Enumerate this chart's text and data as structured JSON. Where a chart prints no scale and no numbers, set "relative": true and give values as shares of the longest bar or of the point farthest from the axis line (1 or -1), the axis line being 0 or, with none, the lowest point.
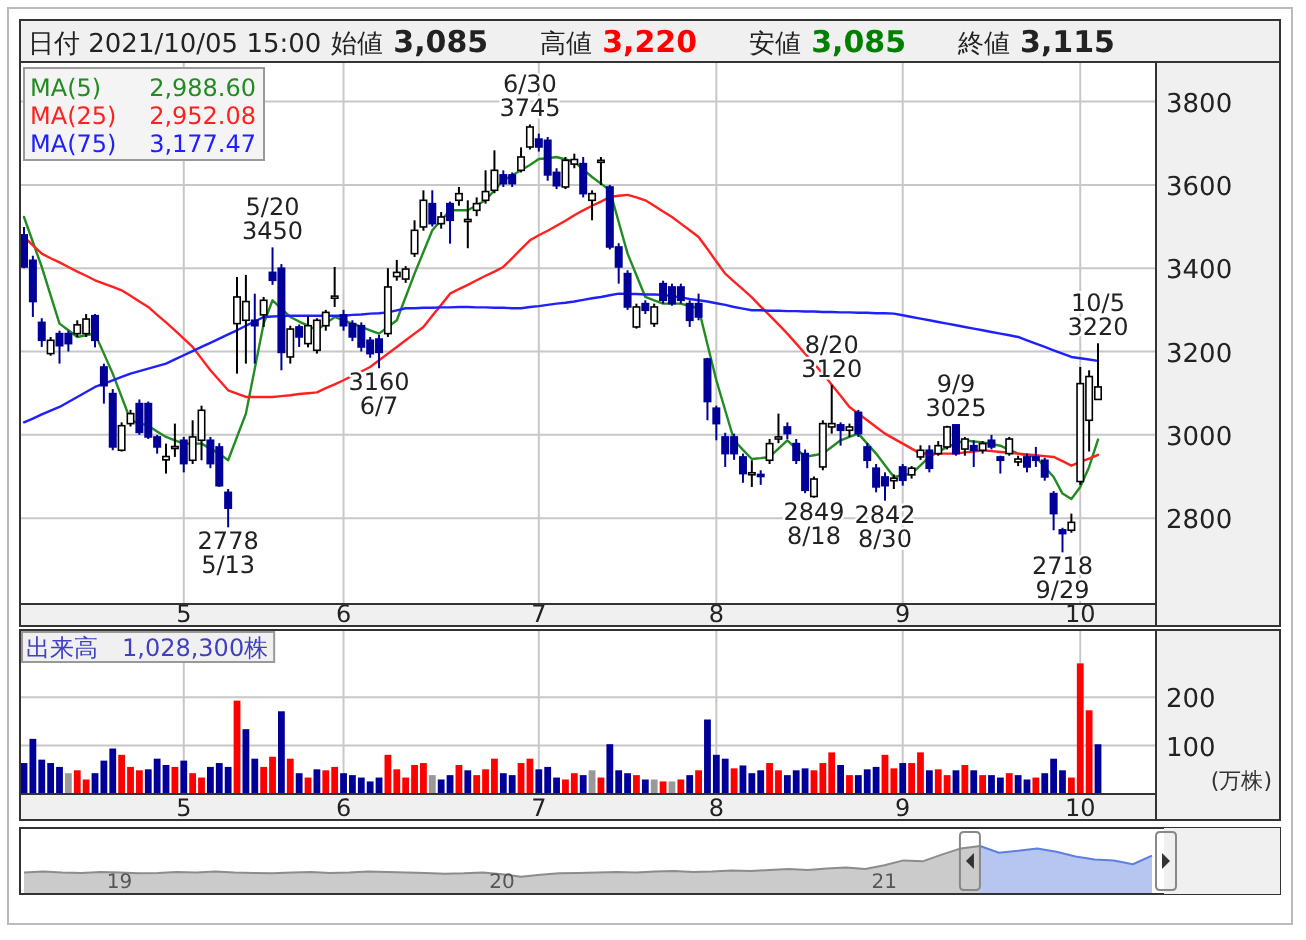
{
  "chart_data": [
    {
      "type": "candlestick",
      "categories": [
        null,
        null,
        null,
        null,
        null,
        null,
        null,
        null,
        null,
        null,
        null,
        null,
        null,
        null,
        null,
        null,
        null,
        null,
        "5",
        null,
        null,
        null,
        null,
        null,
        null,
        null,
        null,
        null,
        null,
        null,
        null,
        null,
        null,
        null,
        null,
        null,
        "6",
        null,
        null,
        null,
        null,
        null,
        null,
        null,
        null,
        null,
        null,
        null,
        null,
        null,
        null,
        null,
        null,
        null,
        null,
        null,
        null,
        null,
        "7",
        null,
        null,
        null,
        null,
        null,
        null,
        null,
        null,
        null,
        null,
        null,
        null,
        null,
        null,
        null,
        null,
        null,
        null,
        null,
        "8",
        null,
        null,
        null,
        null,
        null,
        null,
        null,
        null,
        null,
        null,
        null,
        null,
        null,
        null,
        null,
        null,
        null,
        null,
        null,
        null,
        "9",
        null,
        null,
        null,
        null,
        null,
        null,
        null,
        null,
        null,
        null,
        null,
        null,
        null,
        null,
        null,
        null,
        null,
        null,
        null,
        "10",
        null,
        null
      ],
      "ohlc": [
        [
          3480,
          3499,
          3400,
          3403
        ],
        [
          3419,
          3430,
          3283,
          3320
        ],
        [
          3270,
          3280,
          3211,
          3227
        ],
        [
          3195,
          3235,
          3190,
          3227
        ],
        [
          3243,
          3250,
          3171,
          3214
        ],
        [
          3243,
          3250,
          3200,
          3219
        ],
        [
          3243,
          3275,
          3235,
          3264
        ],
        [
          3243,
          3290,
          3235,
          3278
        ],
        [
          3286,
          3290,
          3210,
          3227
        ],
        [
          3163,
          3171,
          3075,
          3118
        ],
        [
          3099,
          3110,
          2963,
          2971
        ],
        [
          2963,
          3030,
          2960,
          3022
        ],
        [
          3027,
          3060,
          3020,
          3051
        ],
        [
          3075,
          3085,
          3000,
          3006
        ],
        [
          3075,
          3080,
          2990,
          2995
        ],
        [
          2995,
          3000,
          2955,
          2971
        ],
        [
          2940,
          2979,
          2907,
          2948
        ],
        [
          2968,
          3027,
          2947,
          2972
        ],
        [
          2987,
          2995,
          2910,
          2931
        ],
        [
          2939,
          3035,
          2930,
          2995
        ],
        [
          2987,
          3070,
          2939,
          3059
        ],
        [
          2987,
          2995,
          2920,
          2931
        ],
        [
          2971,
          2980,
          2875,
          2878
        ],
        [
          2862,
          2870,
          2778,
          2824
        ],
        [
          3267,
          3379,
          3147,
          3331
        ],
        [
          3275,
          3384,
          3171,
          3320
        ],
        [
          3275,
          3339,
          3171,
          3262
        ],
        [
          3288,
          3331,
          3259,
          3323
        ],
        [
          3390,
          3450,
          3360,
          3371
        ],
        [
          3400,
          3410,
          3155,
          3198
        ],
        [
          3187,
          3262,
          3171,
          3254
        ],
        [
          3259,
          3265,
          3211,
          3235
        ],
        [
          3219,
          3285,
          3210,
          3262
        ],
        [
          3203,
          3280,
          3195,
          3275
        ],
        [
          3262,
          3300,
          3250,
          3294
        ],
        [
          3328,
          3403,
          3307,
          3333
        ],
        [
          3288,
          3300,
          3250,
          3262
        ],
        [
          3267,
          3275,
          3225,
          3235
        ],
        [
          3262,
          3270,
          3200,
          3211
        ],
        [
          3227,
          3235,
          3185,
          3195
        ],
        [
          3230,
          3240,
          3160,
          3198
        ],
        [
          3243,
          3400,
          3235,
          3355
        ],
        [
          3380,
          3420,
          3370,
          3390
        ],
        [
          3374,
          3405,
          3365,
          3398
        ],
        [
          3435,
          3515,
          3427,
          3491
        ],
        [
          3499,
          3587,
          3490,
          3563
        ],
        [
          3555,
          3587,
          3500,
          3507
        ],
        [
          3507,
          3535,
          3495,
          3523
        ],
        [
          3555,
          3560,
          3459,
          3515
        ],
        [
          3563,
          3595,
          3550,
          3579
        ],
        [
          3512,
          3563,
          3448,
          3517
        ],
        [
          3539,
          3570,
          3525,
          3555
        ],
        [
          3563,
          3635,
          3555,
          3584
        ],
        [
          3587,
          3683,
          3580,
          3635
        ],
        [
          3624,
          3635,
          3595,
          3603
        ],
        [
          3624,
          3630,
          3595,
          3603
        ],
        [
          3635,
          3690,
          3630,
          3667
        ],
        [
          3691,
          3745,
          3685,
          3739
        ],
        [
          3710,
          3723,
          3680,
          3691
        ],
        [
          3707,
          3715,
          3610,
          3624
        ],
        [
          3630,
          3640,
          3590,
          3598
        ],
        [
          3595,
          3667,
          3590,
          3659
        ],
        [
          3650,
          3675,
          3640,
          3661
        ],
        [
          3651,
          3667,
          3570,
          3579
        ],
        [
          3563,
          3587,
          3515,
          3579
        ],
        [
          3655,
          3667,
          3600,
          3659
        ],
        [
          3595,
          3600,
          3445,
          3451
        ],
        [
          3451,
          3460,
          3363,
          3403
        ],
        [
          3387,
          3395,
          3300,
          3307
        ],
        [
          3259,
          3315,
          3255,
          3307
        ],
        [
          3315,
          3323,
          3290,
          3299
        ],
        [
          3267,
          3315,
          3259,
          3307
        ],
        [
          3363,
          3370,
          3315,
          3323
        ],
        [
          3355,
          3363,
          3310,
          3315
        ],
        [
          3355,
          3363,
          3315,
          3323
        ],
        [
          3315,
          3323,
          3259,
          3275
        ],
        [
          3315,
          3339,
          3275,
          3283
        ],
        [
          3182,
          3185,
          3035,
          3080
        ],
        [
          3064,
          3070,
          2987,
          3027
        ],
        [
          2995,
          3005,
          2923,
          2955
        ],
        [
          2995,
          3003,
          2940,
          2955
        ],
        [
          2947,
          2955,
          2885,
          2907
        ],
        [
          2905,
          2939,
          2875,
          2909
        ],
        [
          2905,
          2915,
          2880,
          2900
        ],
        [
          2939,
          2990,
          2930,
          2979
        ],
        [
          2990,
          3051,
          2980,
          2995
        ],
        [
          3019,
          3030,
          2990,
          3003
        ],
        [
          2979,
          2990,
          2930,
          2939
        ],
        [
          2955,
          2965,
          2860,
          2867
        ],
        [
          2852,
          2900,
          2849,
          2894
        ],
        [
          2923,
          3035,
          2915,
          3027
        ],
        [
          3019,
          3120,
          3003,
          3027
        ],
        [
          3024,
          3030,
          2974,
          3011
        ],
        [
          3011,
          3027,
          2995,
          3019
        ],
        [
          3054,
          3060,
          2995,
          3003
        ],
        [
          2971,
          2980,
          2920,
          2939
        ],
        [
          2920,
          2930,
          2862,
          2875
        ],
        [
          2899,
          2910,
          2842,
          2878
        ],
        [
          2890,
          2905,
          2870,
          2896
        ],
        [
          2923,
          2930,
          2878,
          2891
        ],
        [
          2904,
          2925,
          2895,
          2920
        ],
        [
          2947,
          2975,
          2940,
          2963
        ],
        [
          2963,
          2975,
          2910,
          2920
        ],
        [
          2955,
          2985,
          2950,
          2974
        ],
        [
          2971,
          3022,
          2965,
          3019
        ],
        [
          3024,
          3025,
          2950,
          2955
        ],
        [
          2966,
          2995,
          2950,
          2990
        ],
        [
          2974,
          2987,
          2923,
          2963
        ],
        [
          2963,
          2985,
          2955,
          2979
        ],
        [
          2987,
          3000,
          2965,
          2971
        ],
        [
          2947,
          2950,
          2907,
          2939
        ],
        [
          2955,
          2995,
          2950,
          2990
        ],
        [
          2935,
          2950,
          2925,
          2942
        ],
        [
          2947,
          2955,
          2910,
          2923
        ],
        [
          2947,
          2971,
          2923,
          2939
        ],
        [
          2939,
          2945,
          2890,
          2899
        ],
        [
          2859,
          2865,
          2771,
          2811
        ],
        [
          2772,
          2777,
          2718,
          2763
        ],
        [
          2771,
          2811,
          2765,
          2790
        ],
        [
          2888,
          3163,
          2880,
          3123
        ],
        [
          3035,
          3155,
          2960,
          3140
        ],
        [
          3085,
          3220,
          3085,
          3115
        ]
      ],
      "colors": [
        "#000099",
        "#000099",
        "#000099",
        "#ffffff",
        "#000099",
        "#000099",
        "#ffffff",
        "#ffffff",
        "#000099",
        "#000099",
        "#000099",
        "#ffffff",
        "#ffffff",
        "#000099",
        "#000099",
        "#000099",
        "#ffffff",
        "#ffffff",
        "#000099",
        "#ffffff",
        "#ffffff",
        "#000099",
        "#000099",
        "#000099",
        "#ffffff",
        "#ffffff",
        "#000099",
        "#ffffff",
        "#000099",
        "#000099",
        "#ffffff",
        "#000099",
        "#ffffff",
        "#ffffff",
        "#ffffff",
        "#ffffff",
        "#000099",
        "#000099",
        "#000099",
        "#000099",
        "#000099",
        "#ffffff",
        "#ffffff",
        "#ffffff",
        "#ffffff",
        "#ffffff",
        "#000099",
        "#ffffff",
        "#000099",
        "#ffffff",
        "#ffffff",
        "#ffffff",
        "#ffffff",
        "#ffffff",
        "#000099",
        "#000099",
        "#ffffff",
        "#ffffff",
        "#000099",
        "#000099",
        "#000099",
        "#ffffff",
        "#ffffff",
        "#000099",
        "#ffffff",
        "#ffffff",
        "#000099",
        "#000099",
        "#000099",
        "#ffffff",
        "#000099",
        "#ffffff",
        "#000099",
        "#000099",
        "#000099",
        "#000099",
        "#000099",
        "#000099",
        "#000099",
        "#000099",
        "#000099",
        "#000099",
        "#ffffff",
        "#000099",
        "#ffffff",
        "#ffffff",
        "#000099",
        "#000099",
        "#000099",
        "#ffffff",
        "#ffffff",
        "#ffffff",
        "#000099",
        "#ffffff",
        "#000099",
        "#000099",
        "#000099",
        "#000099",
        "#ffffff",
        "#000099",
        "#ffffff",
        "#ffffff",
        "#000099",
        "#ffffff",
        "#ffffff",
        "#000099",
        "#ffffff",
        "#000099",
        "#ffffff",
        "#000099",
        "#000099",
        "#ffffff",
        "#ffffff",
        "#000099",
        "#000099",
        "#000099",
        "#000099",
        "#000099",
        "#ffffff",
        "#ffffff",
        "#ffffff",
        "#ffffff"
      ],
      "series": [
        {
          "name": "MA(5)",
          "type": "line",
          "color": "#228b22",
          "values": [
            3523,
            3463,
            3403,
            3335,
            3267,
            3251,
            3235,
            3239,
            3243,
            3195,
            3147,
            3091,
            3035,
            3028,
            3022,
            3008,
            2995,
            2987,
            2979,
            2979,
            2979,
            2967,
            2955,
            2939,
            2995,
            3051,
            3159,
            3267,
            3323,
            3303,
            3283,
            3272,
            3262,
            3251,
            3267,
            3283,
            3275,
            3267,
            3259,
            3251,
            3243,
            3259,
            3275,
            3331,
            3387,
            3439,
            3491,
            3515,
            3539,
            3539,
            3539,
            3551,
            3563,
            3587,
            3611,
            3623,
            3635,
            3648,
            3662,
            3664,
            3667,
            3661,
            3656,
            3637,
            3619,
            3603,
            3587,
            3511,
            3435,
            3383,
            3331,
            3323,
            3315,
            3315,
            3315,
            3309,
            3304,
            3217,
            3131,
            3059,
            2987,
            2964,
            2942,
            2944,
            2947,
            2967,
            2987,
            2967,
            2947,
            2951,
            2955,
            2971,
            2987,
            2995,
            3003,
            2979,
            2955,
            2927,
            2899,
            2903,
            2907,
            2927,
            2947,
            2959,
            2971,
            2979,
            2987,
            2984,
            2982,
            2978,
            2974,
            2964,
            2955,
            2951,
            2947,
            2923,
            2899,
            2859,
            2846,
            2875,
            2923,
            2988.6
          ]
        },
        {
          "name": "MA(25)",
          "type": "line",
          "color": "#ff2020",
          "values": [
            3475,
            3455,
            3435,
            3424,
            3414,
            3403,
            3392,
            3382,
            3371,
            3363,
            3355,
            3347,
            3334,
            3320,
            3307,
            3288,
            3270,
            3251,
            3231,
            3211,
            3183,
            3155,
            3131,
            3107,
            3099,
            3091,
            3091,
            3091,
            3091,
            3093,
            3095,
            3098,
            3100,
            3102,
            3112,
            3121,
            3131,
            3142,
            3152,
            3163,
            3179,
            3195,
            3211,
            3227,
            3243,
            3259,
            3286,
            3312,
            3339,
            3350,
            3360,
            3371,
            3382,
            3392,
            3403,
            3424,
            3446,
            3467,
            3479,
            3490,
            3502,
            3514,
            3527,
            3539,
            3550,
            3560,
            3571,
            3574,
            3576,
            3570,
            3563,
            3550,
            3536,
            3523,
            3507,
            3491,
            3475,
            3446,
            3416,
            3387,
            3368,
            3349,
            3330,
            3308,
            3287,
            3265,
            3243,
            3219,
            3195,
            3171,
            3147,
            3120,
            3094,
            3067,
            3051,
            3035,
            3019,
            3003,
            2991,
            2979,
            2967,
            2955,
            2955,
            2955,
            2955,
            2955,
            2958,
            2960,
            2963,
            2961,
            2959,
            2957,
            2955,
            2953,
            2951,
            2949,
            2947,
            2937,
            2926,
            2935,
            2943,
            2952.08
          ]
        },
        {
          "name": "MA(75)",
          "type": "line",
          "color": "#2020ff",
          "values": [
            3030,
            3039,
            3049,
            3058,
            3067,
            3079,
            3091,
            3103,
            3115,
            3123,
            3131,
            3139,
            3147,
            3153,
            3159,
            3165,
            3171,
            3181,
            3191,
            3201,
            3211,
            3221,
            3231,
            3241,
            3251,
            3262,
            3272,
            3283,
            3284,
            3285,
            3286,
            3286,
            3286,
            3286,
            3286,
            3286,
            3286,
            3288,
            3289,
            3291,
            3292,
            3294,
            3299,
            3304,
            3304,
            3305,
            3305,
            3306,
            3306,
            3307,
            3307,
            3306,
            3306,
            3305,
            3305,
            3304,
            3304,
            3307,
            3309,
            3312,
            3315,
            3317,
            3320,
            3324,
            3328,
            3331,
            3335,
            3339,
            3338,
            3338,
            3337,
            3337,
            3336,
            3333,
            3330,
            3326,
            3323,
            3320,
            3316,
            3312,
            3307,
            3303,
            3299,
            3299,
            3298,
            3298,
            3297,
            3297,
            3296,
            3296,
            3295,
            3295,
            3294,
            3294,
            3293,
            3293,
            3292,
            3292,
            3291,
            3287,
            3283,
            3279,
            3275,
            3271,
            3267,
            3263,
            3259,
            3255,
            3251,
            3247,
            3243,
            3239,
            3235,
            3227,
            3219,
            3211,
            3203,
            3195,
            3187,
            3184,
            3181,
            3177.47
          ]
        }
      ],
      "ylim": [
        2594,
        3895
      ],
      "yticks": [
        2800,
        3000,
        3200,
        3400,
        3600,
        3800
      ],
      "grid": true,
      "legend": "top left",
      "annotations": [
        "日付 2021/10/05 15:00",
        "始値",
        "3,085",
        "高値",
        "3,220",
        "安値",
        "3,085",
        "終値",
        "3,115",
        "2,988.60",
        "2,952.08",
        "3,177.47",
        {
          "text": "5/20\n3450",
          "y": 3450
        },
        {
          "text": "2778\n5/13",
          "y": 2778
        },
        {
          "text": "3160\n6/7",
          "y": 3160
        },
        {
          "text": "6/30\n3745",
          "y": 3745
        },
        {
          "text": "2849\n8/18",
          "y": 2849
        },
        {
          "text": "8/20\n3120",
          "y": 3120
        },
        {
          "text": "2842\n8/30",
          "y": 2842
        },
        {
          "text": "9/9\n3025",
          "y": 3025
        },
        {
          "text": "2718\n9/29",
          "y": 2718
        },
        {
          "text": "10/5\n3220",
          "y": 3220
        }
      ]
    },
    {
      "type": "bar",
      "categories": [
        null,
        null,
        null,
        null,
        null,
        null,
        null,
        null,
        null,
        null,
        null,
        null,
        null,
        null,
        null,
        null,
        null,
        null,
        "5",
        null,
        null,
        null,
        null,
        null,
        null,
        null,
        null,
        null,
        null,
        null,
        null,
        null,
        null,
        null,
        null,
        null,
        "6",
        null,
        null,
        null,
        null,
        null,
        null,
        null,
        null,
        null,
        null,
        null,
        null,
        null,
        null,
        null,
        null,
        null,
        null,
        null,
        null,
        null,
        "7",
        null,
        null,
        null,
        null,
        null,
        null,
        null,
        null,
        null,
        null,
        null,
        null,
        null,
        null,
        null,
        null,
        null,
        null,
        null,
        "8",
        null,
        null,
        null,
        null,
        null,
        null,
        null,
        null,
        null,
        null,
        null,
        null,
        null,
        null,
        null,
        null,
        null,
        null,
        null,
        null,
        "9",
        null,
        null,
        null,
        null,
        null,
        null,
        null,
        null,
        null,
        null,
        null,
        null,
        null,
        null,
        null,
        null,
        null,
        null,
        null,
        "10",
        null,
        null
      ],
      "values": [
        64,
        114,
        71,
        64,
        56,
        43,
        49,
        30,
        43,
        69,
        94,
        81,
        56,
        49,
        51,
        73,
        60,
        56,
        69,
        43,
        34,
        56,
        64,
        56,
        193,
        134,
        73,
        56,
        77,
        171,
        73,
        43,
        34,
        51,
        49,
        56,
        43,
        39,
        34,
        26,
        34,
        81,
        51,
        34,
        60,
        64,
        39,
        30,
        39,
        60,
        49,
        39,
        51,
        73,
        43,
        39,
        64,
        73,
        51,
        56,
        34,
        30,
        43,
        39,
        49,
        34,
        103,
        49,
        43,
        39,
        30,
        30,
        26,
        26,
        30,
        39,
        49,
        154,
        81,
        73,
        53,
        59,
        43,
        49,
        64,
        49,
        39,
        49,
        53,
        49,
        64,
        86,
        60,
        39,
        39,
        51,
        56,
        81,
        53,
        64,
        64,
        86,
        49,
        51,
        39,
        49,
        60,
        49,
        39,
        39,
        34,
        43,
        39,
        30,
        34,
        43,
        73,
        49,
        34,
        270,
        173,
        102.83
      ],
      "colors": [
        "#000099",
        "#000099",
        "#000099",
        "#000099",
        "#000099",
        "#999999",
        "#ff0000",
        "#ff0000",
        "#000099",
        "#000099",
        "#000099",
        "#ff0000",
        "#ff0000",
        "#ff0000",
        "#000099",
        "#000099",
        "#000099",
        "#ff0000",
        "#000099",
        "#ff0000",
        "#ff0000",
        "#000099",
        "#000099",
        "#000099",
        "#ff0000",
        "#000099",
        "#000099",
        "#ff0000",
        "#ff0000",
        "#000099",
        "#ff0000",
        "#000099",
        "#ff0000",
        "#000099",
        "#ff0000",
        "#ff0000",
        "#000099",
        "#000099",
        "#000099",
        "#000099",
        "#000099",
        "#ff0000",
        "#ff0000",
        "#ff0000",
        "#ff0000",
        "#ff0000",
        "#999999",
        "#000099",
        "#000099",
        "#ff0000",
        "#000099",
        "#ff0000",
        "#ff0000",
        "#ff0000",
        "#000099",
        "#000099",
        "#ff0000",
        "#ff0000",
        "#000099",
        "#000099",
        "#000099",
        "#ff0000",
        "#ff0000",
        "#000099",
        "#999999",
        "#ff0000",
        "#000099",
        "#000099",
        "#000099",
        "#ff0000",
        "#000099",
        "#999999",
        "#ff0000",
        "#999999",
        "#ff0000",
        "#000099",
        "#ff0000",
        "#000099",
        "#000099",
        "#000099",
        "#ff0000",
        "#000099",
        "#000099",
        "#000099",
        "#ff0000",
        "#ff0000",
        "#000099",
        "#000099",
        "#000099",
        "#ff0000",
        "#ff0000",
        "#ff0000",
        "#000099",
        "#ff0000",
        "#000099",
        "#000099",
        "#000099",
        "#ff0000",
        "#ff0000",
        "#000099",
        "#ff0000",
        "#ff0000",
        "#000099",
        "#ff0000",
        "#ff0000",
        "#000099",
        "#ff0000",
        "#000099",
        "#ff0000",
        "#000099",
        "#000099",
        "#ff0000",
        "#000099",
        "#000099",
        "#ff0000",
        "#000099",
        "#000099",
        "#000099",
        "#ff0000",
        "#ff0000",
        "#ff0000",
        "#000099"
      ],
      "ylim": [
        0,
        339
      ],
      "yticks": [
        100,
        200
      ],
      "grid": true,
      "ylabel": "(万株)",
      "annotations": [
        "出来高　1,028,300株"
      ]
    },
    {
      "type": "area",
      "relative": true,
      "tick_labels": "x",
      "categories": [
        null,
        null,
        null,
        null,
        null,
        "19",
        null,
        null,
        null,
        null,
        null,
        null,
        null,
        null,
        null,
        null,
        null,
        null,
        null,
        null,
        null,
        null,
        null,
        null,
        null,
        "20",
        null,
        null,
        null,
        null,
        null,
        null,
        null,
        null,
        null,
        null,
        null,
        null,
        null,
        null,
        null,
        null,
        null,
        null,
        null,
        "21",
        null,
        null,
        null,
        null,
        null,
        null,
        null,
        null,
        null,
        null,
        null,
        null,
        null,
        null
      ],
      "series": [
        {
          "color": "#8c8c8c",
          "values": [
            0.45,
            0.47,
            0.45,
            0.44,
            0.46,
            0.45,
            0.43,
            0.44,
            0.46,
            0.45,
            0.47,
            0.45,
            0.44,
            0.43,
            0.45,
            0.46,
            0.44,
            0.45,
            0.47,
            0.46,
            0.45,
            0.44,
            0.42,
            0.43,
            0.45,
            0.41,
            0.36,
            0.4,
            0.43,
            0.44,
            0.45,
            0.46,
            0.45,
            0.47,
            0.48,
            0.46,
            0.47,
            0.49,
            0.48,
            0.5,
            0.52,
            0.5,
            0.53,
            0.55,
            0.52,
            0.6,
            0.7,
            0.68,
            0.82,
            0.95,
            1.0,
            null,
            null,
            null,
            null,
            null,
            null,
            null,
            null,
            null
          ]
        },
        {
          "color": "#5f7fe0",
          "values": [
            null,
            null,
            null,
            null,
            null,
            null,
            null,
            null,
            null,
            null,
            null,
            null,
            null,
            null,
            null,
            null,
            null,
            null,
            null,
            null,
            null,
            null,
            null,
            null,
            null,
            null,
            null,
            null,
            null,
            null,
            null,
            null,
            null,
            null,
            null,
            null,
            null,
            null,
            null,
            null,
            null,
            null,
            null,
            null,
            null,
            null,
            null,
            null,
            null,
            null,
            1.0,
            0.86,
            0.9,
            0.95,
            0.88,
            0.78,
            0.72,
            0.7,
            0.62,
            0.8
          ]
        }
      ]
    }
  ]
}
